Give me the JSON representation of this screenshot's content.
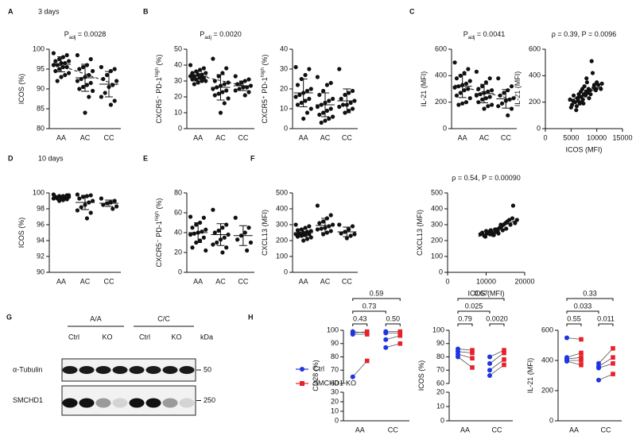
{
  "chart_data": [
    {
      "type": "dotplot",
      "panel": "A",
      "heading": "3 days",
      "title": [
        {
          "text": "P"
        },
        {
          "text": "adj",
          "sub": true
        },
        {
          "text": " = 0.0028"
        }
      ],
      "ylabel": [
        {
          "text": "ICOS (%)"
        }
      ],
      "categories": [
        "AA",
        "AC",
        "CC"
      ],
      "values": [
        [
          99,
          98.5,
          98,
          97.5,
          97,
          97,
          96.5,
          96.5,
          96,
          96,
          95.5,
          95.5,
          95,
          94.5,
          94,
          93.5,
          93,
          92
        ],
        [
          98.5,
          97.5,
          96,
          95.5,
          95,
          94.5,
          93.5,
          93,
          92.5,
          92,
          91.5,
          91,
          90.5,
          90,
          89.5,
          88,
          84
        ],
        [
          95.5,
          95,
          94.5,
          93.5,
          92.5,
          92,
          91,
          90.5,
          89,
          88,
          87,
          86
        ]
      ],
      "mean": [
        96.2,
        92.8,
        91.2
      ],
      "sd": [
        1.9,
        3.4,
        3.2
      ],
      "trend": [
        96.5,
        91
      ],
      "ylim": [
        80,
        100
      ],
      "yticks": [
        80,
        85,
        90,
        95,
        100
      ]
    },
    {
      "type": "dotplot",
      "panel": "B",
      "title": [
        {
          "text": "P"
        },
        {
          "text": "adj",
          "sub": true
        },
        {
          "text": " = 0.0020"
        }
      ],
      "ylabel": [
        {
          "text": "CXCR5⁻ PD-1"
        },
        {
          "text": "high",
          "sup": true
        },
        {
          "text": " (%)"
        }
      ],
      "categories": [
        "AA",
        "AC",
        "CC"
      ],
      "values": [
        [
          40,
          38,
          37,
          36,
          35,
          35,
          34,
          34,
          33,
          33,
          32,
          32,
          31,
          31,
          30,
          30,
          29,
          28
        ],
        [
          44,
          38,
          35,
          33,
          30,
          29,
          28,
          27,
          26,
          25,
          24,
          23,
          22,
          21,
          19,
          16,
          10
        ],
        [
          33,
          31,
          30,
          29,
          28,
          27,
          26,
          26,
          25,
          24,
          23,
          21
        ]
      ],
      "mean": [
        33,
        26,
        27
      ],
      "sd": [
        3,
        8,
        3
      ],
      "trend": [
        34.5,
        26
      ],
      "ylim": [
        0,
        50
      ],
      "yticks": [
        0,
        10,
        20,
        30,
        40,
        50
      ]
    },
    {
      "type": "dotplot",
      "ylabel": [
        {
          "text": "CXCR5⁺ PD-1"
        },
        {
          "text": "high",
          "sup": true
        },
        {
          "text": " (%)"
        }
      ],
      "categories": [
        "AA",
        "AC",
        "CC"
      ],
      "values": [
        [
          31,
          30,
          27,
          25,
          22,
          20,
          19,
          18,
          17,
          16,
          15,
          14,
          13,
          12,
          10,
          8,
          5
        ],
        [
          26,
          23,
          22,
          19,
          17,
          15,
          14,
          13,
          12,
          11,
          10,
          9,
          8,
          7,
          6,
          5,
          4,
          3
        ],
        [
          30,
          19,
          18,
          17,
          15,
          14,
          13,
          12,
          12,
          11,
          10,
          9,
          8
        ]
      ],
      "mean": [
        18,
        12,
        14
      ],
      "sd": [
        7,
        6,
        6
      ],
      "ylim": [
        0,
        40
      ],
      "yticks": [
        0,
        10,
        20,
        30,
        40
      ]
    },
    {
      "type": "dotplot",
      "panel": "C",
      "title": [
        {
          "text": "P"
        },
        {
          "text": "adj",
          "sub": true
        },
        {
          "text": " = 0.0041"
        }
      ],
      "ylabel": [
        {
          "text": "IL-21 (MFI)"
        }
      ],
      "categories": [
        "AA",
        "AC",
        "CC"
      ],
      "values": [
        [
          500,
          450,
          420,
          400,
          380,
          360,
          340,
          330,
          320,
          310,
          300,
          290,
          270,
          250,
          230,
          200,
          190,
          180
        ],
        [
          430,
          380,
          350,
          320,
          300,
          290,
          280,
          270,
          260,
          250,
          240,
          230,
          220,
          200,
          180,
          170,
          150
        ],
        [
          380,
          320,
          290,
          270,
          250,
          230,
          220,
          210,
          190,
          170,
          150,
          100
        ]
      ],
      "mean": [
        320,
        265,
        225
      ],
      "sd": [
        85,
        70,
        70
      ],
      "trend": [
        330,
        220
      ],
      "ylim": [
        0,
        600
      ],
      "yticks": [
        0,
        200,
        400,
        600
      ]
    },
    {
      "type": "scatter",
      "title": [
        {
          "text": "ρ = 0.39, P = 0.0096"
        }
      ],
      "ylabel": [
        {
          "text": "IL-21 (MFI)"
        }
      ],
      "xlabel": "ICOS (MFI)",
      "x": [
        4800,
        5200,
        5500,
        5800,
        6000,
        6200,
        6400,
        6500,
        6700,
        6900,
        7000,
        7200,
        7300,
        7500,
        7600,
        7800,
        8000,
        8200,
        8400,
        8500,
        8700,
        9000,
        9200,
        9500,
        9800,
        10000,
        10300,
        10800,
        6100,
        5400,
        7100,
        8800,
        9400,
        6600,
        7900,
        8100,
        11000,
        5000,
        9900,
        7400
      ],
      "values": [
        220,
        180,
        250,
        200,
        140,
        230,
        210,
        260,
        190,
        280,
        240,
        300,
        220,
        260,
        320,
        250,
        380,
        270,
        300,
        230,
        290,
        510,
        420,
        330,
        290,
        350,
        330,
        300,
        170,
        210,
        200,
        260,
        310,
        240,
        280,
        350,
        340,
        160,
        300,
        190
      ],
      "fit": {
        "x": [
          4500,
          11000
        ],
        "y": [
          205,
          320
        ]
      },
      "xlim": [
        0,
        15000
      ],
      "xticks": [
        0,
        5000,
        10000,
        15000
      ],
      "ylim": [
        0,
        600
      ],
      "yticks": [
        0,
        200,
        400,
        600
      ]
    },
    {
      "type": "dotplot",
      "panel": "D",
      "heading": "10 days",
      "ylabel": [
        {
          "text": "ICOS (%)"
        }
      ],
      "categories": [
        "AA",
        "AC",
        "CC"
      ],
      "values": [
        [
          99.8,
          99.7,
          99.6,
          99.6,
          99.5,
          99.5,
          99.4,
          99.4,
          99.3,
          99.3,
          99.2,
          99.1,
          99.0,
          99.5,
          99.7
        ],
        [
          99.8,
          99.7,
          99.6,
          99.5,
          99.3,
          99.0,
          98.8,
          98.5,
          98.2,
          97.8,
          97.5,
          96.8
        ],
        [
          99.3,
          99.0,
          98.8,
          98.7,
          98.5,
          98.3,
          98.0
        ]
      ],
      "mean": [
        99.4,
        98.8,
        98.7
      ],
      "sd": [
        0.25,
        0.9,
        0.4
      ],
      "ylim": [
        90,
        100
      ],
      "yticks": [
        90,
        92,
        94,
        96,
        98,
        100
      ]
    },
    {
      "type": "dotplot",
      "panel": "E",
      "ylabel": [
        {
          "text": "CXCR5⁻ PD-1"
        },
        {
          "text": "high",
          "sup": true
        },
        {
          "text": " (%)"
        }
      ],
      "categories": [
        "AA",
        "AC",
        "CC"
      ],
      "values": [
        [
          56,
          55,
          50,
          48,
          45,
          43,
          41,
          40,
          39,
          38,
          35,
          32,
          30,
          25,
          22
        ],
        [
          63,
          48,
          45,
          42,
          40,
          38,
          35,
          33,
          30,
          28,
          25,
          20
        ],
        [
          55,
          45,
          40,
          37,
          33,
          30,
          22
        ]
      ],
      "mean": [
        40,
        38,
        37
      ],
      "sd": [
        10,
        11,
        10
      ],
      "ylim": [
        0,
        80
      ],
      "yticks": [
        0,
        20,
        40,
        60,
        80
      ]
    },
    {
      "type": "dotplot",
      "panel": "F",
      "ylabel": [
        {
          "text": "CXCL13 (MFI)"
        }
      ],
      "categories": [
        "AA",
        "AC",
        "CC"
      ],
      "values": [
        [
          300,
          290,
          280,
          270,
          265,
          260,
          255,
          250,
          245,
          240,
          240,
          235,
          230,
          225,
          220,
          210,
          200
        ],
        [
          420,
          360,
          340,
          320,
          310,
          300,
          290,
          280,
          275,
          270,
          260,
          250,
          240
        ],
        [
          300,
          290,
          270,
          255,
          245,
          240,
          230,
          215
        ]
      ],
      "mean": [
        250,
        295,
        255
      ],
      "sd": [
        25,
        45,
        30
      ],
      "ylim": [
        0,
        500
      ],
      "yticks": [
        0,
        100,
        200,
        300,
        400,
        500
      ]
    },
    {
      "type": "scatter",
      "title": [
        {
          "text": "ρ = 0.54, P = 0.00090"
        }
      ],
      "ylabel": [
        {
          "text": "CXCL13 (MFI)"
        }
      ],
      "xlabel": "ICOS (MFI)",
      "x": [
        8500,
        9000,
        9500,
        10000,
        10200,
        10500,
        11000,
        11200,
        11500,
        12000,
        12300,
        12500,
        13000,
        13200,
        13500,
        14000,
        14300,
        14500,
        15000,
        15200,
        15500,
        16000,
        16300,
        16800,
        17000,
        17500,
        18000,
        9800,
        10800,
        11800,
        12800,
        13800
      ],
      "values": [
        240,
        250,
        230,
        260,
        245,
        255,
        240,
        265,
        250,
        235,
        270,
        255,
        260,
        245,
        280,
        290,
        265,
        300,
        310,
        275,
        320,
        330,
        300,
        340,
        420,
        310,
        330,
        225,
        250,
        235,
        270,
        300
      ],
      "fit": {
        "x": [
          8000,
          18000
        ],
        "y": [
          225,
          330
        ]
      },
      "xlim": [
        0,
        20000
      ],
      "xticks": [
        0,
        10000,
        20000
      ],
      "ylim": [
        0,
        500
      ],
      "yticks": [
        0,
        100,
        200,
        300,
        400,
        500
      ]
    },
    {
      "type": "paired",
      "panel": "H",
      "legend": true,
      "ylabel": [
        {
          "text": "CD28 (%)"
        }
      ],
      "categories": [
        "AA",
        "CC"
      ],
      "series": [
        {
          "name": "Ctrl",
          "color": "#1f35e0",
          "marker": "circle",
          "values": [
            [
              98,
              99,
              97,
              65
            ],
            [
              87,
              93,
              98,
              99
            ]
          ]
        },
        {
          "name": "SMCHD1-KO",
          "color": "#e8202a",
          "marker": "square",
          "values": [
            [
              99,
              98,
              97,
              77
            ],
            [
              90,
              96,
              98,
              99
            ]
          ]
        }
      ],
      "comparisons": [
        "0.43",
        "0.50",
        "0.73",
        "0.59"
      ],
      "segments": [
        {
          "ylim": [
            0,
            30
          ],
          "yticks": [
            0,
            10,
            20,
            30
          ]
        },
        {
          "ylim": [
            60,
            100
          ],
          "yticks": [
            60,
            70,
            80,
            90,
            100
          ]
        }
      ]
    },
    {
      "type": "paired",
      "ylabel": [
        {
          "text": "ICOS (%)"
        }
      ],
      "categories": [
        "AA",
        "CC"
      ],
      "series": [
        {
          "color": "#1f35e0",
          "marker": "circle",
          "values": [
            [
              86,
              84,
              82,
              80
            ],
            [
              80,
              75,
              70,
              66
            ]
          ]
        },
        {
          "color": "#e8202a",
          "marker": "square",
          "values": [
            [
              85,
              83,
              79,
              72
            ],
            [
              85,
              83,
              78,
              74
            ]
          ]
        }
      ],
      "comparisons": [
        "0.79",
        "0.0020",
        "0.025",
        "0.67"
      ],
      "segments": [
        {
          "ylim": [
            0,
            20
          ],
          "yticks": [
            0,
            10,
            20
          ]
        },
        {
          "ylim": [
            60,
            100
          ],
          "yticks": [
            60,
            70,
            80,
            90,
            100
          ]
        }
      ]
    },
    {
      "type": "paired",
      "ylabel": [
        {
          "text": "IL-21 (MFI)"
        }
      ],
      "categories": [
        "AA",
        "CC"
      ],
      "series": [
        {
          "color": "#1f35e0",
          "marker": "circle",
          "values": [
            [
              550,
              420,
              410,
              400,
              395
            ],
            [
              380,
              360,
              350,
              270
            ]
          ]
        },
        {
          "color": "#e8202a",
          "marker": "square",
          "values": [
            [
              540,
              450,
              420,
              400,
              370
            ],
            [
              480,
              420,
              380,
              310
            ]
          ]
        }
      ],
      "comparisons": [
        "0.55",
        "0.011",
        "0.033",
        "0.33"
      ],
      "ylim": [
        0,
        600
      ],
      "yticks": [
        0,
        200,
        400,
        600
      ]
    }
  ],
  "blot": {
    "panel": "G",
    "groups": [
      "A/A",
      "C/C"
    ],
    "lanes": [
      "Ctrl",
      "KO",
      "Ctrl",
      "KO"
    ],
    "unit": "kDa",
    "rows": [
      {
        "label": "α-Tubulin",
        "marker": 50
      },
      {
        "label": "SMCHD1",
        "marker": 250
      }
    ]
  }
}
